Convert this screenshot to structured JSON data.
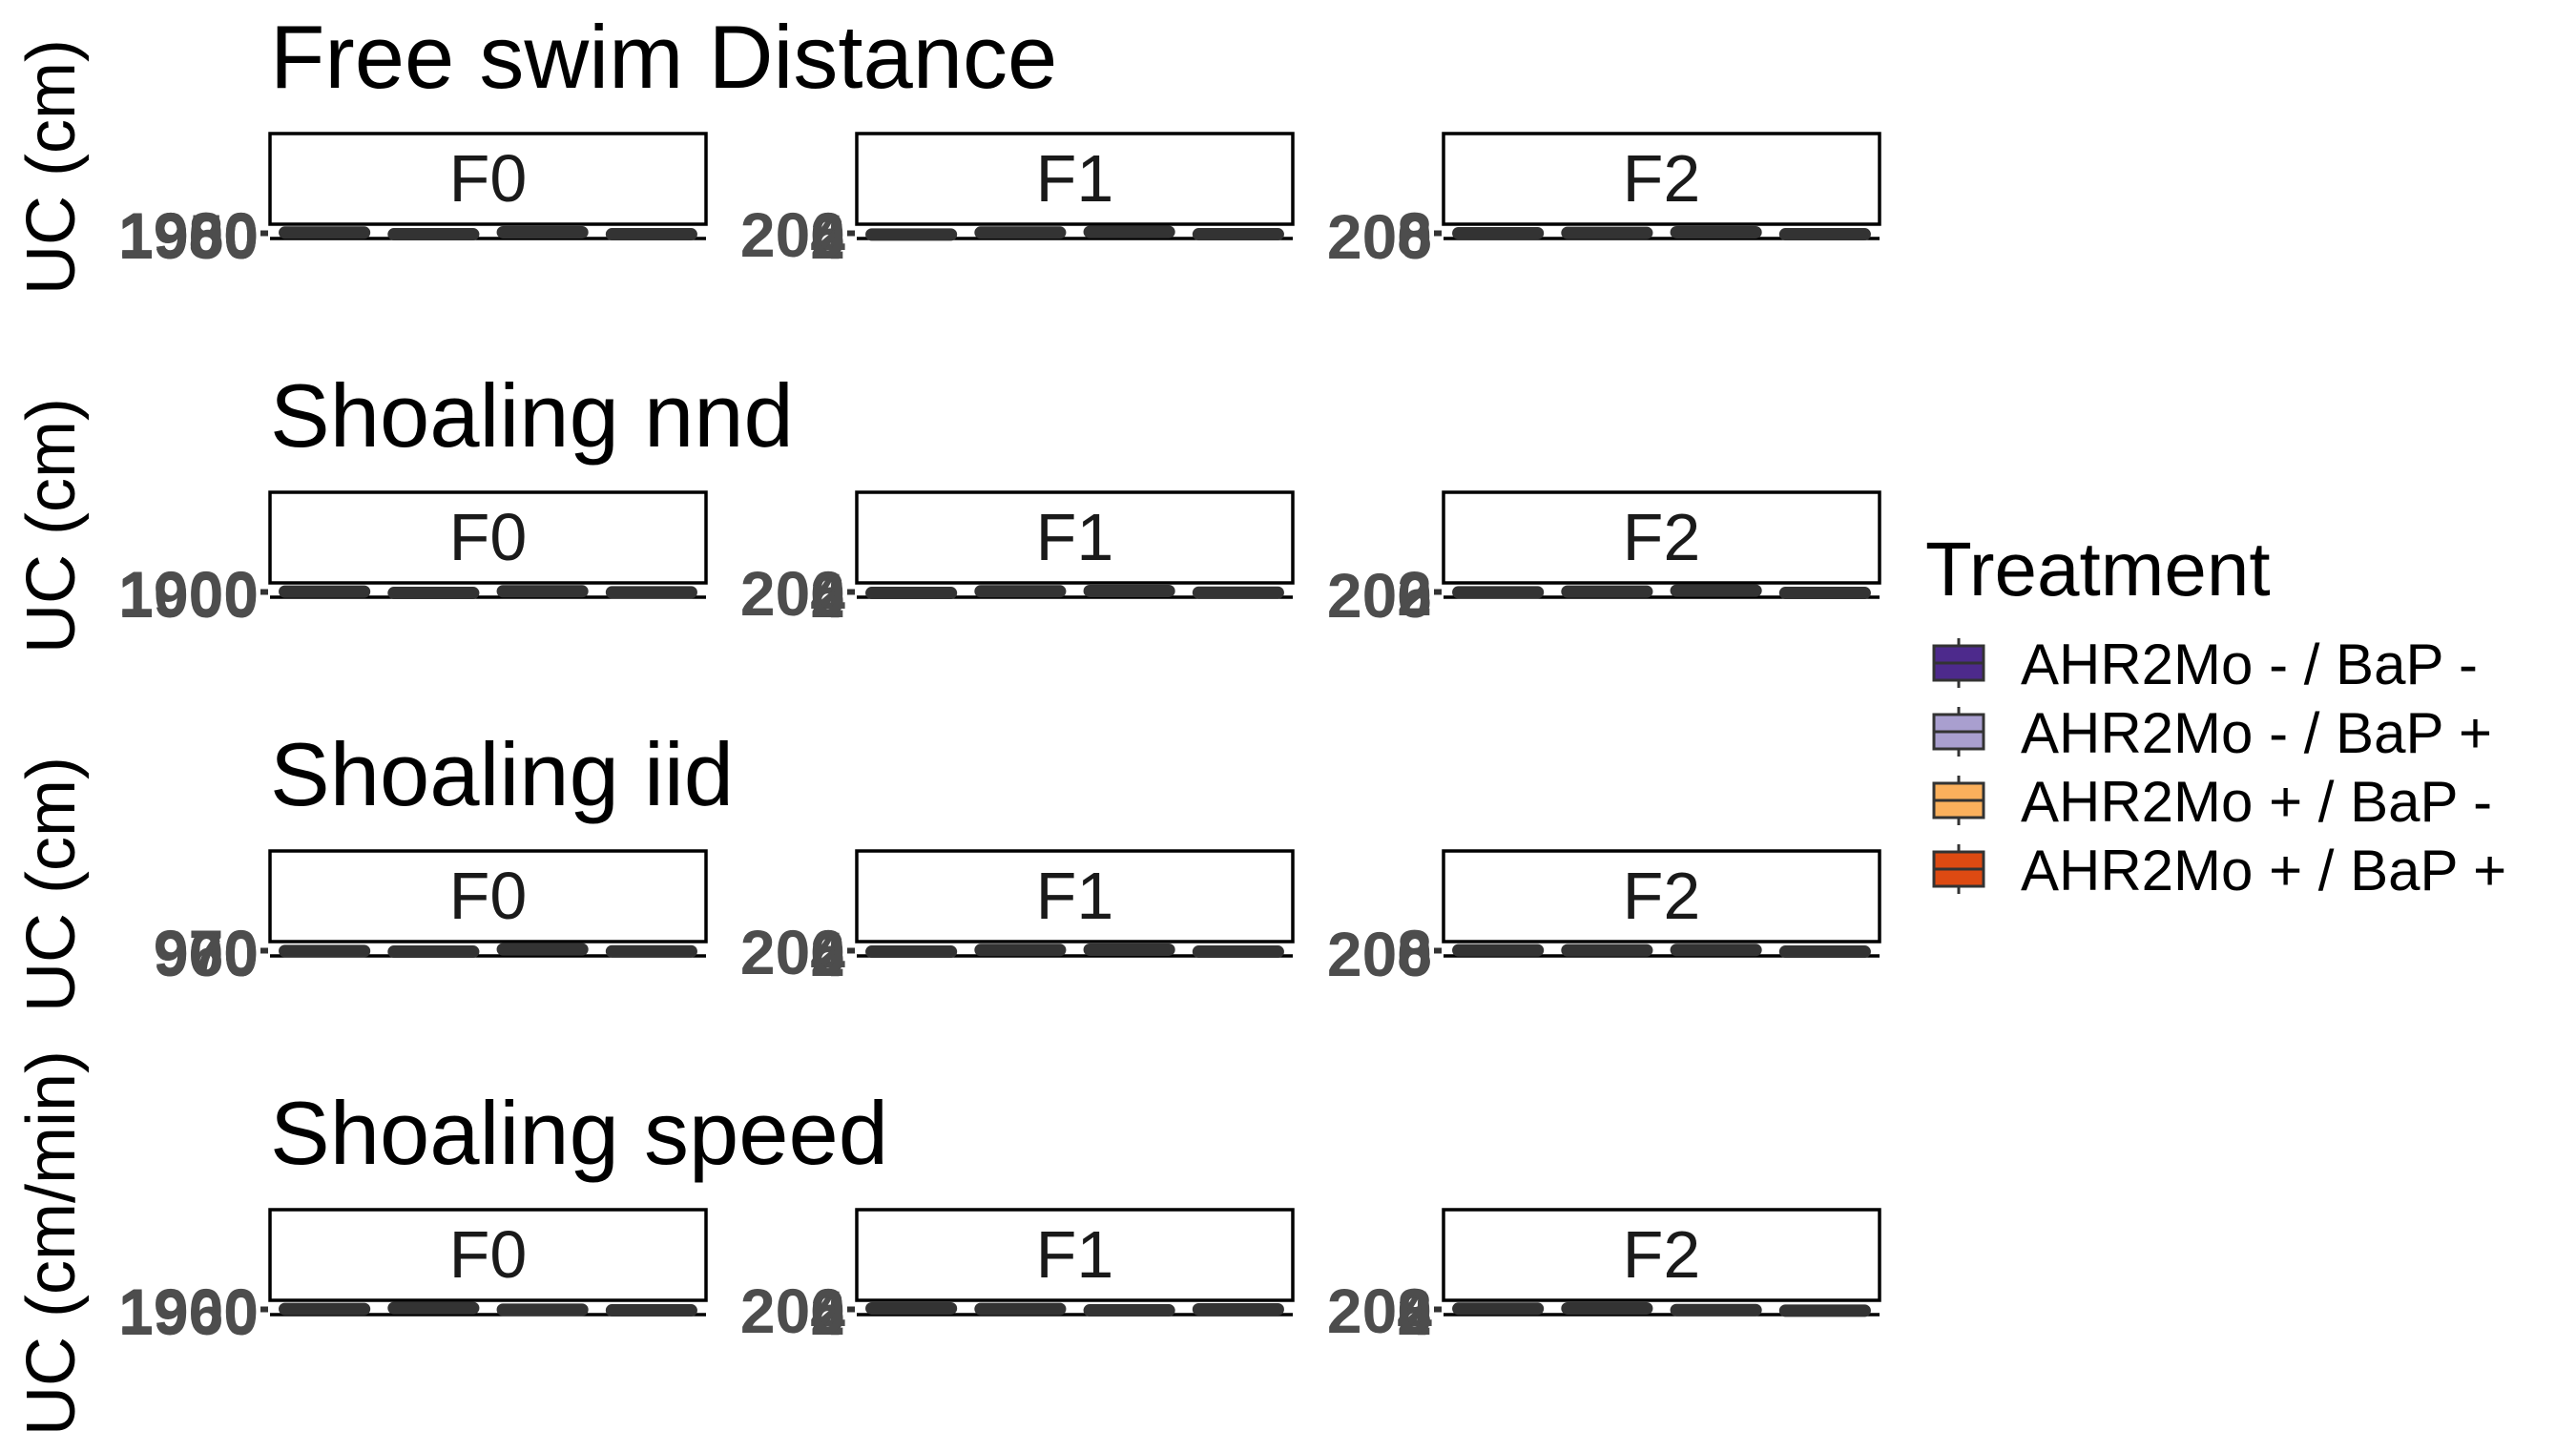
{
  "chart_data": {
    "type": "boxplot",
    "facets": [
      "F0",
      "F1",
      "F2"
    ],
    "legend": {
      "title": "Treatment",
      "position": "right",
      "entries": [
        {
          "label": "AHR2Mo - / BaP -",
          "color": "#4d2a8c"
        },
        {
          "label": "AHR2Mo - / BaP +",
          "color": "#a99fcf"
        },
        {
          "label": "AHR2Mo + / BaP -",
          "color": "#fbb05c"
        },
        {
          "label": "AHR2Mo + / BaP +",
          "color": "#dd4a12"
        }
      ]
    },
    "panels": [
      {
        "title": "Free swim Distance",
        "ylabel": "UC (cm)",
        "tick_labels": [
          [
            "1960",
            "1980",
            "1950",
            "1900"
          ],
          [
            "4",
            "6",
            "2",
            "200"
          ],
          [
            "6",
            "8",
            "200"
          ]
        ],
        "boxes": [
          [
            {
              "median": 0.6
            },
            {
              "median": 0.35
            },
            {
              "median": 0.65
            },
            {
              "median": 0.35
            }
          ],
          [
            {
              "median": 0.3
            },
            {
              "median": 0.6
            },
            {
              "median": 0.7
            },
            {
              "median": 0.35
            }
          ],
          [
            {
              "median": 0.5
            },
            {
              "median": 0.55
            },
            {
              "median": 0.65
            },
            {
              "median": 0.35
            }
          ]
        ]
      },
      {
        "title": "Shoaling nnd",
        "ylabel": "UC (cm)",
        "tick_labels": [
          [
            "1900",
            "1000"
          ],
          [
            "4",
            "6",
            "2",
            "200"
          ],
          [
            "6",
            "2",
            "200"
          ]
        ],
        "boxes": [
          [
            {
              "median": 0.55
            },
            {
              "median": 0.35
            },
            {
              "median": 0.6
            },
            {
              "median": 0.45
            }
          ],
          [
            {
              "median": 0.35
            },
            {
              "median": 0.6
            },
            {
              "median": 0.65
            },
            {
              "median": 0.4
            }
          ],
          [
            {
              "median": 0.45
            },
            {
              "median": 0.55
            },
            {
              "median": 0.7
            },
            {
              "median": 0.35
            }
          ]
        ]
      },
      {
        "title": "Shoaling iid",
        "ylabel": "UC (cm)",
        "tick_labels": [
          [
            "960",
            "970",
            "900"
          ],
          [
            "4",
            "6",
            "2",
            "200"
          ],
          [
            "6",
            "8",
            "200"
          ]
        ],
        "boxes": [
          [
            {
              "median": 0.45
            },
            {
              "median": 0.35
            },
            {
              "median": 0.7
            },
            {
              "median": 0.4
            }
          ],
          [
            {
              "median": 0.35
            },
            {
              "median": 0.6
            },
            {
              "median": 0.65
            },
            {
              "median": 0.35
            }
          ],
          [
            {
              "median": 0.55
            },
            {
              "median": 0.55
            },
            {
              "median": 0.6
            },
            {
              "median": 0.35
            }
          ]
        ]
      },
      {
        "title": "Shoaling speed",
        "ylabel": "UC (cm/min)",
        "tick_labels": [
          [
            "1960",
            "1900"
          ],
          [
            "4",
            "6",
            "2",
            "200"
          ],
          [
            "4",
            "8",
            "2",
            "200"
          ]
        ],
        "boxes": [
          [
            {
              "median": 0.55
            },
            {
              "median": 0.7
            },
            {
              "median": 0.45
            },
            {
              "median": 0.35
            }
          ],
          [
            {
              "median": 0.65
            },
            {
              "median": 0.55
            },
            {
              "median": 0.35
            },
            {
              "median": 0.5
            }
          ],
          [
            {
              "median": 0.6
            },
            {
              "median": 0.65
            },
            {
              "median": 0.4
            },
            {
              "median": 0.3
            }
          ]
        ]
      }
    ]
  }
}
